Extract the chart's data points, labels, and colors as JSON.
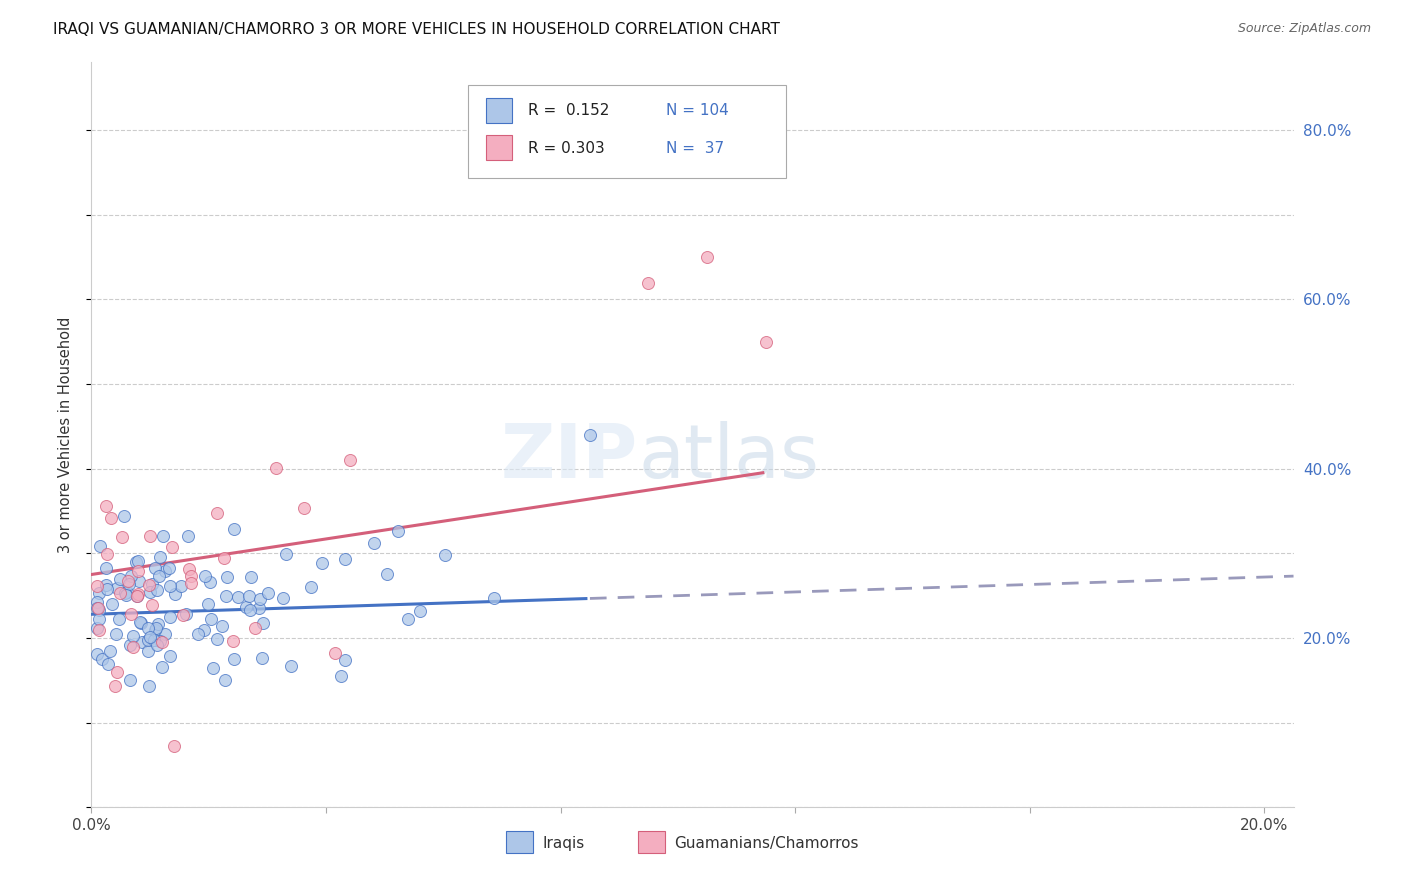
{
  "title": "IRAQI VS GUAMANIAN/CHAMORRO 3 OR MORE VEHICLES IN HOUSEHOLD CORRELATION CHART",
  "source": "Source: ZipAtlas.com",
  "ylabel": "3 or more Vehicles in Household",
  "color_iraqis": "#adc6e8",
  "color_guamanians": "#f4aec0",
  "color_line_iraqis": "#4472c4",
  "color_line_guamanians": "#d45f7a",
  "color_text_blue": "#4472c4",
  "color_dashed": "#9999bb",
  "label_iraqis": "Iraqis",
  "label_guamanians": "Guamanians/Chamorros",
  "R_iraqis": 0.152,
  "N_iraqis": 104,
  "R_guamanians": 0.303,
  "N_guamanians": 37,
  "x_min": 0.0,
  "x_max": 0.205,
  "y_min": 0.0,
  "y_max": 0.88,
  "x_tick_positions": [
    0.0,
    0.04,
    0.08,
    0.12,
    0.16,
    0.2
  ],
  "x_tick_labels": [
    "0.0%",
    "",
    "",
    "",
    "",
    "20.0%"
  ],
  "y_tick_positions": [
    0.0,
    0.1,
    0.2,
    0.3,
    0.4,
    0.5,
    0.6,
    0.7,
    0.8
  ],
  "y_tick_labels_right": [
    "",
    "20.0%",
    "",
    "40.0%",
    "",
    "60.0%",
    "",
    "80.0%"
  ]
}
